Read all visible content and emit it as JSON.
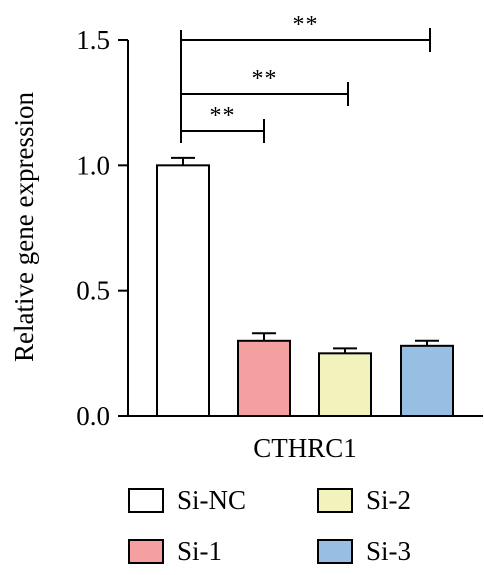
{
  "chart_data": {
    "type": "bar",
    "ylabel": "Relative gene expression",
    "xlabel": "",
    "group_label": "CTHRC1",
    "ylim": [
      0,
      1.5
    ],
    "yticks": [
      {
        "value": 0.0,
        "label": "0.0"
      },
      {
        "value": 0.5,
        "label": "0.5"
      },
      {
        "value": 1.0,
        "label": "1.0"
      },
      {
        "value": 1.5,
        "label": "1.5"
      }
    ],
    "categories": [
      "Si-NC",
      "Si-1",
      "Si-2",
      "Si-3"
    ],
    "values": [
      1.0,
      0.3,
      0.25,
      0.28
    ],
    "errors": [
      0.03,
      0.03,
      0.02,
      0.02
    ],
    "colors": [
      "#ffffff",
      "#f4a0a0",
      "#f2f2bd",
      "#97bfe3"
    ],
    "significance": [
      {
        "from": 0,
        "to": 1,
        "label": "**"
      },
      {
        "from": 0,
        "to": 2,
        "label": "**"
      },
      {
        "from": 0,
        "to": 3,
        "label": "**"
      }
    ],
    "legend": [
      {
        "label": "Si-NC",
        "color": "#ffffff"
      },
      {
        "label": "Si-2",
        "color": "#f2f2bd"
      },
      {
        "label": "Si-1",
        "color": "#f4a0a0"
      },
      {
        "label": "Si-3",
        "color": "#97bfe3"
      }
    ],
    "legend_position": "bottom",
    "grid": false
  }
}
